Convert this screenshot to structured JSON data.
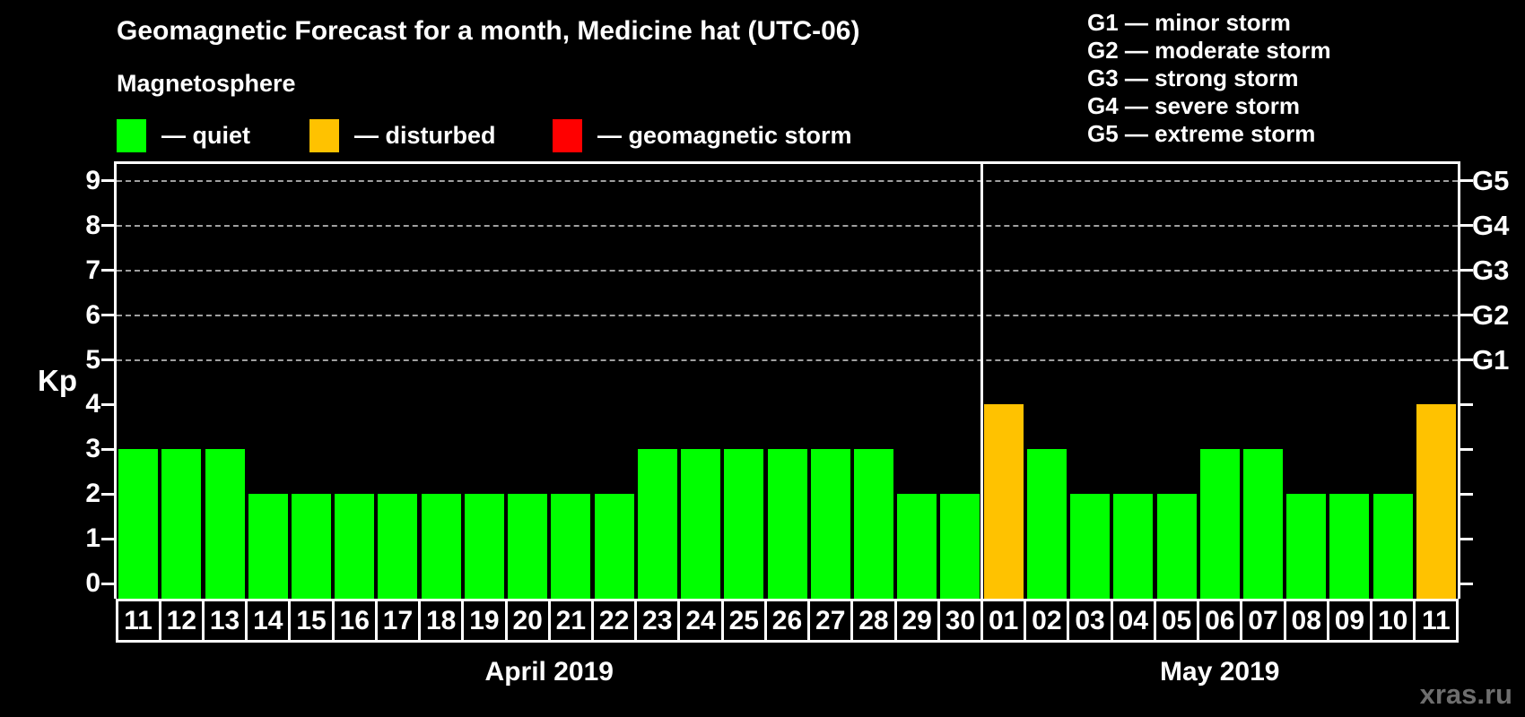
{
  "header": {
    "title": "Geomagnetic Forecast for a month, Medicine hat (UTC-06)"
  },
  "magnetosphere_legend": {
    "title": "Magnetosphere",
    "items": [
      {
        "name": "quiet",
        "label": "— quiet",
        "color": "#00ff00"
      },
      {
        "name": "disturbed",
        "label": "— disturbed",
        "color": "#ffc200"
      },
      {
        "name": "geomagnetic-storm",
        "label": "— geomagnetic storm",
        "color": "#ff0000"
      }
    ]
  },
  "g_scale_legend": {
    "lines": [
      "G1 — minor storm",
      "G2 — moderate storm",
      "G3 — strong storm",
      "G4 — severe storm",
      "G5 — extreme storm"
    ]
  },
  "watermark": "xras.ru",
  "chart_data": {
    "type": "bar",
    "title": "Geomagnetic Forecast for a month, Medicine hat (UTC-06)",
    "ylabel": "Kp",
    "ylim": [
      0,
      9
    ],
    "yticks": [
      0,
      1,
      2,
      3,
      4,
      5,
      6,
      7,
      8,
      9
    ],
    "grid_kp_levels": [
      5,
      6,
      7,
      8,
      9
    ],
    "grid_on": true,
    "right_axis": [
      {
        "label": "G1",
        "kp": 5
      },
      {
        "label": "G2",
        "kp": 6
      },
      {
        "label": "G3",
        "kp": 7
      },
      {
        "label": "G4",
        "kp": 8
      },
      {
        "label": "G5",
        "kp": 9
      }
    ],
    "colors": {
      "quiet": "#00ff00",
      "disturbed": "#ffc200",
      "storm": "#ff0000"
    },
    "months": [
      {
        "label": "April 2019",
        "days": [
          {
            "day": "11",
            "kp": 3,
            "state": "quiet"
          },
          {
            "day": "12",
            "kp": 3,
            "state": "quiet"
          },
          {
            "day": "13",
            "kp": 3,
            "state": "quiet"
          },
          {
            "day": "14",
            "kp": 2,
            "state": "quiet"
          },
          {
            "day": "15",
            "kp": 2,
            "state": "quiet"
          },
          {
            "day": "16",
            "kp": 2,
            "state": "quiet"
          },
          {
            "day": "17",
            "kp": 2,
            "state": "quiet"
          },
          {
            "day": "18",
            "kp": 2,
            "state": "quiet"
          },
          {
            "day": "19",
            "kp": 2,
            "state": "quiet"
          },
          {
            "day": "20",
            "kp": 2,
            "state": "quiet"
          },
          {
            "day": "21",
            "kp": 2,
            "state": "quiet"
          },
          {
            "day": "22",
            "kp": 2,
            "state": "quiet"
          },
          {
            "day": "23",
            "kp": 3,
            "state": "quiet"
          },
          {
            "day": "24",
            "kp": 3,
            "state": "quiet"
          },
          {
            "day": "25",
            "kp": 3,
            "state": "quiet"
          },
          {
            "day": "26",
            "kp": 3,
            "state": "quiet"
          },
          {
            "day": "27",
            "kp": 3,
            "state": "quiet"
          },
          {
            "day": "28",
            "kp": 3,
            "state": "quiet"
          },
          {
            "day": "29",
            "kp": 2,
            "state": "quiet"
          },
          {
            "day": "30",
            "kp": 2,
            "state": "quiet"
          }
        ]
      },
      {
        "label": "May 2019",
        "days": [
          {
            "day": "01",
            "kp": 4,
            "state": "disturbed"
          },
          {
            "day": "02",
            "kp": 3,
            "state": "quiet"
          },
          {
            "day": "03",
            "kp": 2,
            "state": "quiet"
          },
          {
            "day": "04",
            "kp": 2,
            "state": "quiet"
          },
          {
            "day": "05",
            "kp": 2,
            "state": "quiet"
          },
          {
            "day": "06",
            "kp": 3,
            "state": "quiet"
          },
          {
            "day": "07",
            "kp": 3,
            "state": "quiet"
          },
          {
            "day": "08",
            "kp": 2,
            "state": "quiet"
          },
          {
            "day": "09",
            "kp": 2,
            "state": "quiet"
          },
          {
            "day": "10",
            "kp": 2,
            "state": "quiet"
          },
          {
            "day": "11",
            "kp": 4,
            "state": "disturbed"
          }
        ]
      }
    ]
  }
}
